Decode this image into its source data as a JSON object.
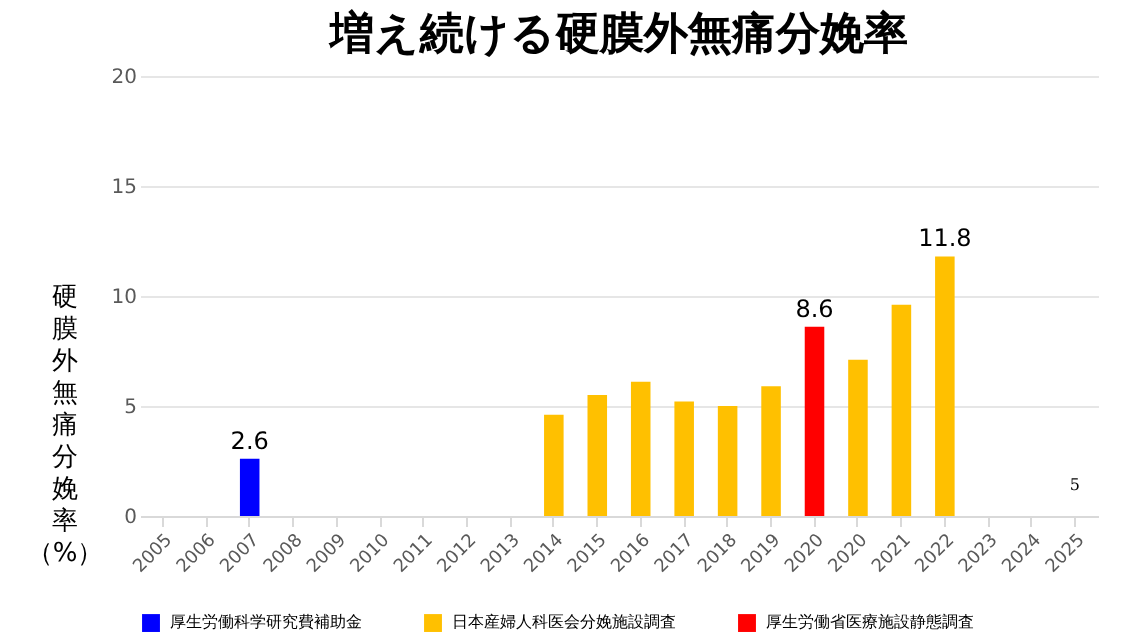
{
  "chart_data": {
    "type": "bar",
    "title": "増え続ける硬膜外無痛分娩率",
    "ylabel": "硬膜外無痛分娩率（%）",
    "categories": [
      "2005",
      "2006",
      "2007",
      "2008",
      "2009",
      "2010",
      "2011",
      "2012",
      "2013",
      "2014",
      "2015",
      "2016",
      "2017",
      "2018",
      "2019",
      "2020",
      "2020",
      "2021",
      "2022",
      "2023",
      "2024",
      "2025"
    ],
    "series": [
      {
        "name": "厚生労働科学研究費補助金",
        "color": "#0000ff",
        "values": [
          null,
          null,
          2.6,
          null,
          null,
          null,
          null,
          null,
          null,
          null,
          null,
          null,
          null,
          null,
          null,
          null,
          null,
          null,
          null,
          null,
          null,
          null
        ],
        "value_labels": [
          null,
          null,
          "2.6",
          null,
          null,
          null,
          null,
          null,
          null,
          null,
          null,
          null,
          null,
          null,
          null,
          null,
          null,
          null,
          null,
          null,
          null,
          null
        ]
      },
      {
        "name": "日本産婦人科医会分娩施設調査",
        "color": "#ffc000",
        "values": [
          null,
          null,
          null,
          null,
          null,
          null,
          null,
          null,
          null,
          4.6,
          5.5,
          6.1,
          5.2,
          5.0,
          5.9,
          null,
          7.1,
          9.6,
          11.8,
          null,
          null,
          null
        ],
        "value_labels": [
          null,
          null,
          null,
          null,
          null,
          null,
          null,
          null,
          null,
          null,
          null,
          null,
          null,
          null,
          null,
          null,
          null,
          null,
          "11.8",
          null,
          null,
          null
        ]
      },
      {
        "name": "厚生労働省医療施設静態調査",
        "color": "#ff0000",
        "values": [
          null,
          null,
          null,
          null,
          null,
          null,
          null,
          null,
          null,
          null,
          null,
          null,
          null,
          null,
          null,
          8.6,
          null,
          null,
          null,
          null,
          null,
          null
        ],
        "value_labels": [
          null,
          null,
          null,
          null,
          null,
          null,
          null,
          null,
          null,
          null,
          null,
          null,
          null,
          null,
          null,
          "8.6",
          null,
          null,
          null,
          null,
          null,
          null
        ]
      }
    ],
    "ylim": [
      0,
      20
    ],
    "yticks": [
      0,
      5,
      10,
      15,
      20
    ],
    "grid": "y",
    "legend": "bottom",
    "annotations": [
      "5"
    ]
  }
}
